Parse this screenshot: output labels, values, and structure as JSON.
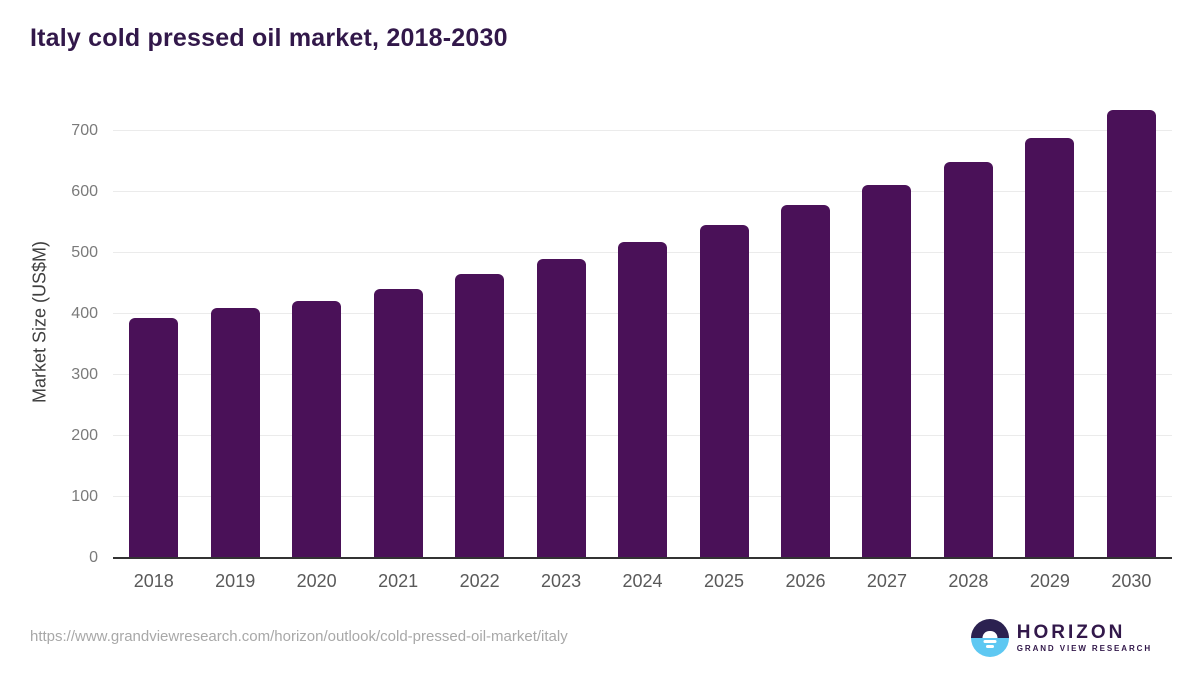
{
  "header": {
    "title": "Italy cold pressed oil market, 2018-2030"
  },
  "chart_data": {
    "type": "bar",
    "title": "Italy cold pressed oil market, 2018-2030",
    "categories": [
      "2018",
      "2019",
      "2020",
      "2021",
      "2022",
      "2023",
      "2024",
      "2025",
      "2026",
      "2027",
      "2028",
      "2029",
      "2030"
    ],
    "values": [
      394,
      410,
      422,
      442,
      466,
      490,
      518,
      547,
      579,
      612,
      650,
      690,
      735
    ],
    "xlabel": "",
    "ylabel": "Market Size (US$M)",
    "ylim": [
      0,
      768
    ],
    "yticks": [
      0,
      100,
      200,
      300,
      400,
      500,
      600,
      700
    ],
    "grid": true,
    "legend": "none",
    "bar_color": "#4a1158"
  },
  "colors": {
    "title_text": "#32184a",
    "bar": "#4a1158",
    "gridline": "#ebebeb",
    "axis_line": "#333333",
    "tick_text": "#7a7a7a",
    "logo_navy": "#2b2150",
    "logo_blue": "#5ec8f2"
  },
  "footer": {
    "source_url": "https://www.grandviewresearch.com/horizon/outlook/cold-pressed-oil-market/italy",
    "logo": {
      "brand": "HORIZON",
      "sub_brand": "GRAND VIEW RESEARCH"
    }
  }
}
